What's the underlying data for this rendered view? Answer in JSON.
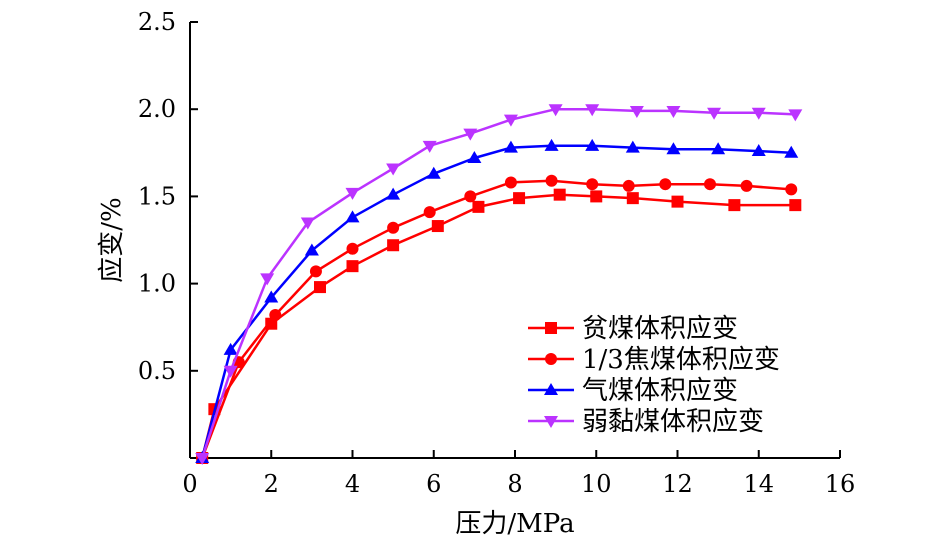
{
  "chart_data": {
    "type": "line",
    "title": "",
    "xlabel": "压力/MPa",
    "ylabel": "应变/%",
    "xlim": [
      0,
      16
    ],
    "ylim": [
      0,
      2.5
    ],
    "x_ticks": [
      "0",
      "2",
      "4",
      "6",
      "8",
      "10",
      "12",
      "14",
      "16"
    ],
    "y_ticks": [
      "0.5",
      "1.0",
      "1.5",
      "2.0",
      "2.5"
    ],
    "grid": false,
    "legend_position": "bottom-right",
    "series": [
      {
        "name": "贫煤体积应变",
        "color": "#ff0000",
        "marker": "square",
        "points": [
          [
            0.3,
            0.0
          ],
          [
            0.6,
            0.28
          ],
          [
            2.0,
            0.77
          ],
          [
            3.2,
            0.98
          ],
          [
            4.0,
            1.1
          ],
          [
            5.0,
            1.22
          ],
          [
            6.1,
            1.33
          ],
          [
            7.1,
            1.44
          ],
          [
            8.1,
            1.49
          ],
          [
            9.1,
            1.51
          ],
          [
            10.0,
            1.5
          ],
          [
            10.9,
            1.49
          ],
          [
            12.0,
            1.47
          ],
          [
            13.4,
            1.45
          ],
          [
            14.9,
            1.45
          ]
        ]
      },
      {
        "name": "1/3焦煤体积应变",
        "color": "#ff0000",
        "marker": "circle",
        "points": [
          [
            0.3,
            0.0
          ],
          [
            1.2,
            0.55
          ],
          [
            2.1,
            0.82
          ],
          [
            3.1,
            1.07
          ],
          [
            4.0,
            1.2
          ],
          [
            5.0,
            1.32
          ],
          [
            5.9,
            1.41
          ],
          [
            6.9,
            1.5
          ],
          [
            7.9,
            1.58
          ],
          [
            8.9,
            1.59
          ],
          [
            9.9,
            1.57
          ],
          [
            10.8,
            1.56
          ],
          [
            11.7,
            1.57
          ],
          [
            12.8,
            1.57
          ],
          [
            13.7,
            1.56
          ],
          [
            14.8,
            1.54
          ]
        ]
      },
      {
        "name": "气煤体积应变",
        "color": "#0000ff",
        "marker": "triangle-up",
        "points": [
          [
            0.3,
            0.0
          ],
          [
            1.0,
            0.62
          ],
          [
            2.0,
            0.92
          ],
          [
            3.0,
            1.19
          ],
          [
            4.0,
            1.38
          ],
          [
            5.0,
            1.51
          ],
          [
            6.0,
            1.63
          ],
          [
            7.0,
            1.72
          ],
          [
            7.9,
            1.78
          ],
          [
            8.9,
            1.79
          ],
          [
            9.9,
            1.79
          ],
          [
            10.9,
            1.78
          ],
          [
            11.9,
            1.77
          ],
          [
            13.0,
            1.77
          ],
          [
            14.0,
            1.76
          ],
          [
            14.8,
            1.75
          ]
        ]
      },
      {
        "name": "弱黏煤体积应变",
        "color": "#bb33ff",
        "marker": "triangle-down",
        "points": [
          [
            0.3,
            0.0
          ],
          [
            1.0,
            0.5
          ],
          [
            1.9,
            1.03
          ],
          [
            2.9,
            1.35
          ],
          [
            4.0,
            1.52
          ],
          [
            5.0,
            1.66
          ],
          [
            5.9,
            1.79
          ],
          [
            6.9,
            1.86
          ],
          [
            7.9,
            1.94
          ],
          [
            9.0,
            2.0
          ],
          [
            9.9,
            2.0
          ],
          [
            11.0,
            1.99
          ],
          [
            11.9,
            1.99
          ],
          [
            12.9,
            1.98
          ],
          [
            14.0,
            1.98
          ],
          [
            14.9,
            1.97
          ]
        ]
      }
    ]
  }
}
